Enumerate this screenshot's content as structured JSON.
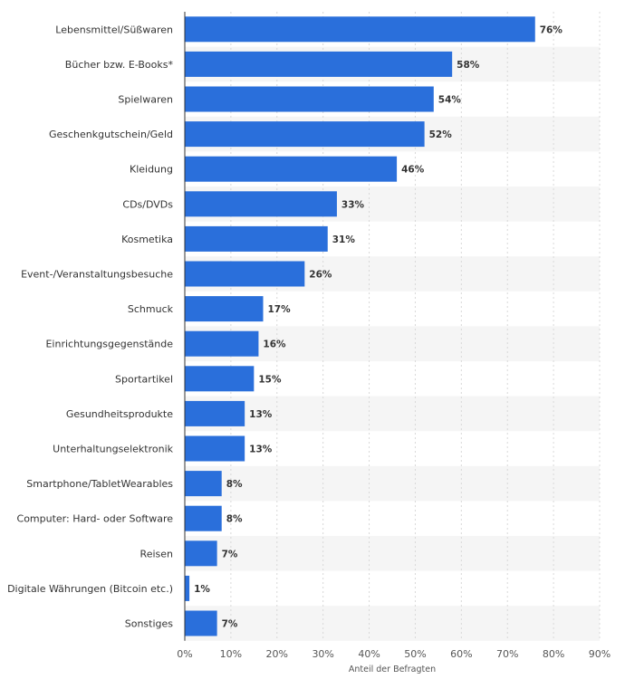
{
  "chart_data": {
    "type": "bar",
    "orientation": "horizontal",
    "categories": [
      "Lebensmittel/Süßwaren",
      "Bücher bzw. E-Books*",
      "Spielwaren",
      "Geschenkgutschein/Geld",
      "Kleidung",
      "CDs/DVDs",
      "Kosmetika",
      "Event-/Veranstaltungsbesuche",
      "Schmuck",
      "Einrichtungsgegenstände",
      "Sportartikel",
      "Gesundheitsprodukte",
      "Unterhaltungselektronik",
      "Smartphone/TabletWearables",
      "Computer: Hard- oder Software",
      "Reisen",
      "Digitale Währungen (Bitcoin etc.)",
      "Sonstiges"
    ],
    "values": [
      76,
      58,
      54,
      52,
      46,
      33,
      31,
      26,
      17,
      16,
      15,
      13,
      13,
      8,
      8,
      7,
      1,
      7
    ],
    "value_labels": [
      "76%",
      "58%",
      "54%",
      "52%",
      "46%",
      "33%",
      "31%",
      "26%",
      "17%",
      "16%",
      "15%",
      "13%",
      "13%",
      "8%",
      "8%",
      "7%",
      "1%",
      "7%"
    ],
    "xticks": [
      "0%",
      "10%",
      "20%",
      "30%",
      "40%",
      "50%",
      "60%",
      "70%",
      "80%",
      "90%"
    ],
    "xlim": [
      0,
      90
    ],
    "xlabel": "Anteil der Befragten",
    "ylabel": "",
    "title": "",
    "grid": true,
    "alternating_row_shading": true,
    "colors": {
      "bar": "#2a6fdb",
      "row_shade": "#f5f5f5",
      "grid": "#d8d8d8",
      "axis": "#333333"
    }
  }
}
